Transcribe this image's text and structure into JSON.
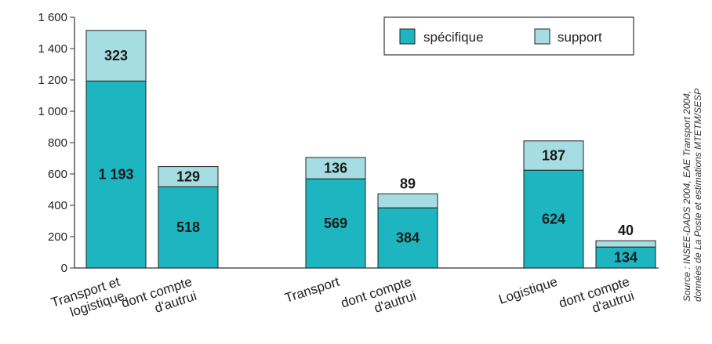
{
  "chart_data": {
    "type": "bar",
    "stacked": true,
    "ylim": [
      0,
      1600
    ],
    "yticks": [
      "0",
      "200",
      "400",
      "600",
      "800",
      "1 000",
      "1 200",
      "1 400",
      "1 600"
    ],
    "categories": [
      [
        "Transport et",
        "logistique"
      ],
      [
        "dont compte",
        "d'autrui"
      ],
      [
        "Transport"
      ],
      [
        "dont compte",
        "d'autrui"
      ],
      [
        "Logistique"
      ],
      [
        "dont compte",
        "d'autrui"
      ]
    ],
    "series": [
      {
        "name": "spécifique",
        "color": "#1db5c0",
        "values": [
          1193,
          518,
          569,
          384,
          624,
          134
        ],
        "labels": [
          "1 193",
          "518",
          "569",
          "384",
          "624",
          "134"
        ]
      },
      {
        "name": "support",
        "color": "#a6dde3",
        "values": [
          323,
          129,
          136,
          89,
          187,
          40
        ],
        "labels": [
          "323",
          "129",
          "136",
          "89",
          "187",
          "40"
        ]
      }
    ],
    "grid": false,
    "legend": "top-right",
    "source": [
      "Source : INSEE-DADS 2004, EAE Transport 2004,",
      "données de La Poste et estimations MTETM/SESP"
    ]
  }
}
